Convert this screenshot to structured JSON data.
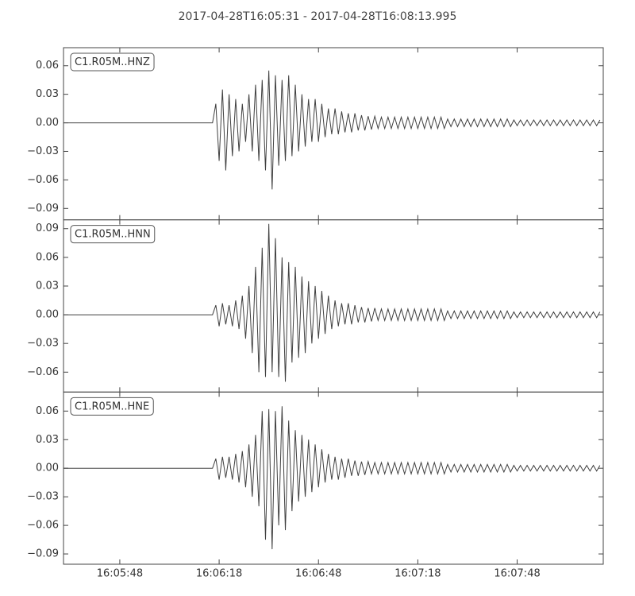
{
  "chart_data": {
    "type": "line",
    "title": "2017-04-28T16:05:31  -  2017-04-28T16:08:13.995",
    "xlim": [
      0,
      162.995
    ],
    "xticks": [
      {
        "value": 17,
        "label": "16:05:48"
      },
      {
        "value": 47,
        "label": "16:06:18"
      },
      {
        "value": 77,
        "label": "16:06:48"
      },
      {
        "value": 107,
        "label": "16:07:18"
      },
      {
        "value": 137,
        "label": "16:07:48"
      }
    ],
    "x": [
      0,
      1,
      2,
      3,
      4,
      5,
      6,
      7,
      8,
      9,
      10,
      11,
      12,
      13,
      14,
      15,
      16,
      17,
      18,
      19,
      20,
      21,
      22,
      23,
      24,
      25,
      26,
      27,
      28,
      29,
      30,
      31,
      32,
      33,
      34,
      35,
      36,
      37,
      38,
      39,
      40,
      41,
      42,
      43,
      44,
      45,
      46,
      47,
      48,
      49,
      50,
      51,
      52,
      53,
      54,
      55,
      56,
      57,
      58,
      59,
      60,
      61,
      62,
      63,
      64,
      65,
      66,
      67,
      68,
      69,
      70,
      71,
      72,
      73,
      74,
      75,
      76,
      77,
      78,
      79,
      80,
      81,
      82,
      83,
      84,
      85,
      86,
      87,
      88,
      89,
      90,
      91,
      92,
      93,
      94,
      95,
      96,
      97,
      98,
      99,
      100,
      101,
      102,
      103,
      104,
      105,
      106,
      107,
      108,
      109,
      110,
      111,
      112,
      113,
      114,
      115,
      116,
      117,
      118,
      119,
      120,
      121,
      122,
      123,
      124,
      125,
      126,
      127,
      128,
      129,
      130,
      131,
      132,
      133,
      134,
      135,
      136,
      137,
      138,
      139,
      140,
      141,
      142,
      143,
      144,
      145,
      146,
      147,
      148,
      149,
      150,
      151,
      152,
      153,
      154,
      155,
      156,
      157,
      158,
      159,
      160,
      161,
      162
    ],
    "series": [
      {
        "name": "C1.R05M..HNZ",
        "color": "#404040",
        "ylim": [
          -0.102,
          0.079
        ],
        "yticks": [
          {
            "value": -0.09,
            "label": "−0.09"
          },
          {
            "value": -0.06,
            "label": "−0.06"
          },
          {
            "value": -0.03,
            "label": "−0.03"
          },
          {
            "value": 0,
            "label": "0.00"
          },
          0.03,
          0.06
        ],
        "values": [
          0,
          0,
          0,
          0,
          0,
          0,
          0,
          0,
          0,
          0,
          0,
          0,
          0,
          0,
          0,
          0,
          0,
          0,
          0,
          0,
          0,
          0,
          0,
          0,
          0,
          0,
          0,
          0,
          0,
          0,
          0,
          0,
          0,
          0,
          0,
          0,
          0,
          0,
          0,
          0,
          0,
          0,
          0,
          0,
          0,
          0,
          0.02,
          -0.04,
          0.035,
          -0.05,
          0.03,
          -0.035,
          0.025,
          -0.03,
          0.02,
          -0.02,
          0.03,
          -0.03,
          0.04,
          -0.04,
          0.045,
          -0.05,
          0.055,
          -0.07,
          0.05,
          -0.045,
          0.045,
          -0.04,
          0.05,
          -0.035,
          0.04,
          -0.03,
          0.03,
          -0.025,
          0.025,
          -0.02,
          0.025,
          -0.02,
          0.02,
          -0.015,
          0.015,
          -0.012,
          0.015,
          -0.012,
          0.012,
          -0.01,
          0.01,
          -0.01,
          0.01,
          -0.008,
          0.008,
          -0.008,
          0.007,
          -0.007,
          0.007,
          -0.006,
          0.006,
          -0.006,
          0.006,
          -0.006,
          0.006,
          -0.006,
          0.006,
          -0.006,
          0.006,
          -0.006,
          0.006,
          -0.006,
          0.006,
          -0.006,
          0.006,
          -0.006,
          0.006,
          -0.006,
          0.006,
          -0.006,
          0.004,
          -0.004,
          0.004,
          -0.004,
          0.004,
          -0.004,
          0.004,
          -0.004,
          0.004,
          -0.004,
          0.004,
          -0.004,
          0.004,
          -0.004,
          0.004,
          -0.004,
          0.004,
          -0.004,
          0.004,
          -0.004,
          0.003,
          -0.003,
          0.003,
          -0.003,
          0.003,
          -0.003,
          0.003,
          -0.003,
          0.003,
          -0.003,
          0.003,
          -0.003,
          0.003,
          -0.003,
          0.003,
          -0.003,
          0.003,
          -0.003,
          0.003,
          -0.003,
          0.003,
          -0.003,
          0.003,
          -0.003,
          0.003,
          -0.003,
          0.003
        ]
      },
      {
        "name": "C1.R05M..HNN",
        "color": "#404040",
        "ylim": [
          -0.0808,
          0.0992
        ],
        "yticks": [
          {
            "value": -0.06,
            "label": "−0.06"
          },
          {
            "value": -0.03,
            "label": "−0.03"
          },
          {
            "value": 0,
            "label": "0.00"
          },
          0.03,
          0.06,
          0.09
        ],
        "values": [
          0,
          0,
          0,
          0,
          0,
          0,
          0,
          0,
          0,
          0,
          0,
          0,
          0,
          0,
          0,
          0,
          0,
          0,
          0,
          0,
          0,
          0,
          0,
          0,
          0,
          0,
          0,
          0,
          0,
          0,
          0,
          0,
          0,
          0,
          0,
          0,
          0,
          0,
          0,
          0,
          0,
          0,
          0,
          0,
          0,
          0,
          0.01,
          -0.012,
          0.012,
          -0.01,
          0.01,
          -0.012,
          0.015,
          -0.015,
          0.02,
          -0.025,
          0.03,
          -0.04,
          0.05,
          -0.06,
          0.07,
          -0.065,
          0.095,
          -0.06,
          0.08,
          -0.065,
          0.06,
          -0.07,
          0.055,
          -0.05,
          0.05,
          -0.045,
          0.04,
          -0.04,
          0.035,
          -0.03,
          0.03,
          -0.025,
          0.025,
          -0.02,
          0.02,
          -0.015,
          0.015,
          -0.012,
          0.012,
          -0.01,
          0.012,
          -0.01,
          0.01,
          -0.008,
          0.008,
          -0.008,
          0.007,
          -0.007,
          0.007,
          -0.006,
          0.006,
          -0.006,
          0.006,
          -0.006,
          0.006,
          -0.006,
          0.006,
          -0.006,
          0.006,
          -0.006,
          0.006,
          -0.006,
          0.006,
          -0.006,
          0.006,
          -0.006,
          0.006,
          -0.006,
          0.006,
          -0.006,
          0.004,
          -0.004,
          0.004,
          -0.004,
          0.004,
          -0.004,
          0.004,
          -0.004,
          0.004,
          -0.004,
          0.004,
          -0.004,
          0.004,
          -0.004,
          0.004,
          -0.004,
          0.004,
          -0.004,
          0.004,
          -0.004,
          0.003,
          -0.003,
          0.003,
          -0.003,
          0.003,
          -0.003,
          0.003,
          -0.003,
          0.003,
          -0.003,
          0.003,
          -0.003,
          0.003,
          -0.003,
          0.003,
          -0.003,
          0.003,
          -0.003,
          0.003,
          -0.003,
          0.003,
          -0.003,
          0.003,
          -0.003,
          0.003,
          -0.003,
          0.003
        ]
      },
      {
        "name": "C1.R05M..HNE",
        "color": "#404040",
        "ylim": [
          -0.1008,
          0.08
        ],
        "yticks": [
          {
            "value": -0.09,
            "label": "−0.09"
          },
          {
            "value": -0.06,
            "label": "−0.06"
          },
          {
            "value": -0.03,
            "label": "−0.03"
          },
          {
            "value": 0,
            "label": "0.00"
          },
          0.03,
          0.06
        ],
        "values": [
          0,
          0,
          0,
          0,
          0,
          0,
          0,
          0,
          0,
          0,
          0,
          0,
          0,
          0,
          0,
          0,
          0,
          0,
          0,
          0,
          0,
          0,
          0,
          0,
          0,
          0,
          0,
          0,
          0,
          0,
          0,
          0,
          0,
          0,
          0,
          0,
          0,
          0,
          0,
          0,
          0,
          0,
          0,
          0,
          0,
          0,
          0.01,
          -0.012,
          0.012,
          -0.01,
          0.012,
          -0.012,
          0.015,
          -0.015,
          0.018,
          -0.02,
          0.025,
          -0.03,
          0.035,
          -0.04,
          0.06,
          -0.075,
          0.062,
          -0.085,
          0.06,
          -0.06,
          0.065,
          -0.065,
          0.05,
          -0.045,
          0.04,
          -0.035,
          0.035,
          -0.03,
          0.03,
          -0.025,
          0.025,
          -0.02,
          0.02,
          -0.015,
          0.015,
          -0.012,
          0.012,
          -0.012,
          0.01,
          -0.01,
          0.01,
          -0.008,
          0.008,
          -0.008,
          0.007,
          -0.007,
          0.007,
          -0.006,
          0.006,
          -0.006,
          0.006,
          -0.006,
          0.006,
          -0.006,
          0.006,
          -0.006,
          0.006,
          -0.006,
          0.006,
          -0.006,
          0.006,
          -0.006,
          0.006,
          -0.006,
          0.006,
          -0.006,
          0.006,
          -0.006,
          0.006,
          -0.006,
          0.004,
          -0.004,
          0.004,
          -0.004,
          0.004,
          -0.004,
          0.004,
          -0.004,
          0.004,
          -0.004,
          0.004,
          -0.004,
          0.004,
          -0.004,
          0.004,
          -0.004,
          0.004,
          -0.004,
          0.004,
          -0.004,
          0.003,
          -0.003,
          0.003,
          -0.003,
          0.003,
          -0.003,
          0.003,
          -0.003,
          0.003,
          -0.003,
          0.003,
          -0.003,
          0.003,
          -0.003,
          0.003,
          -0.003,
          0.003,
          -0.003,
          0.003,
          -0.003,
          0.003,
          -0.003,
          0.003,
          -0.003,
          0.003,
          -0.003,
          0.003
        ]
      }
    ]
  }
}
